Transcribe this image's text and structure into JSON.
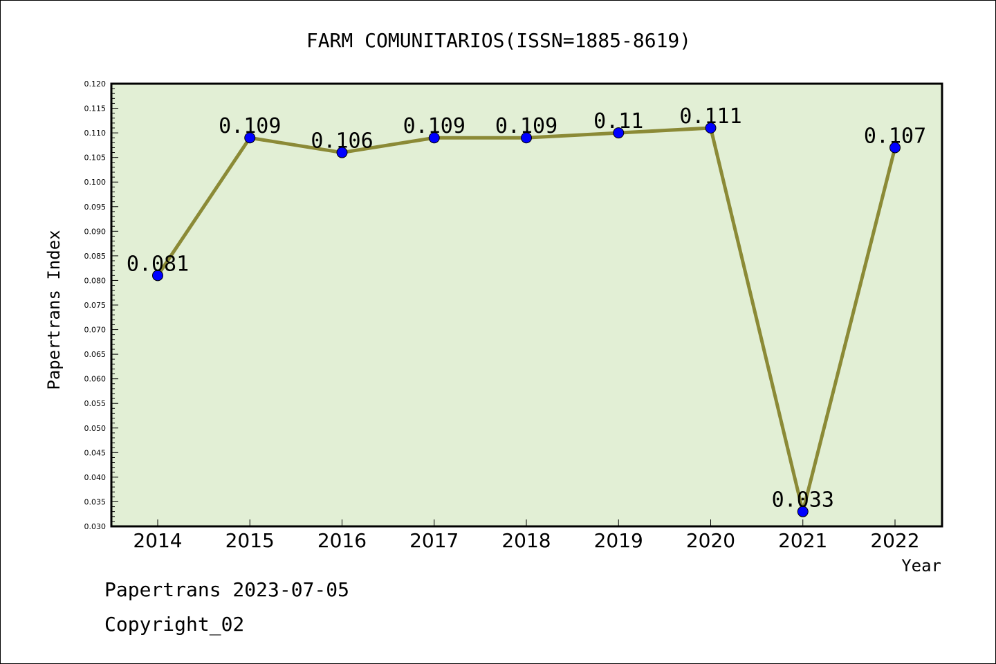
{
  "chart_data": {
    "type": "line",
    "title": "FARM COMUNITARIOS(ISSN=1885-8619)",
    "xlabel": "Year",
    "ylabel": "Papertrans Index",
    "categories": [
      "2014",
      "2015",
      "2016",
      "2017",
      "2018",
      "2019",
      "2020",
      "2021",
      "2022"
    ],
    "values": [
      0.081,
      0.109,
      0.106,
      0.109,
      0.109,
      0.11,
      0.111,
      0.033,
      0.107
    ],
    "data_labels": [
      "0.081",
      "0.109",
      "0.106",
      "0.109",
      "0.109",
      "0.11",
      "0.111",
      "0.033",
      "0.107"
    ],
    "ylim": [
      0.03,
      0.12
    ],
    "ytick_step": 0.005,
    "grid": false,
    "colors": {
      "plot_background": "#e2efd5",
      "line": "#8b8a36",
      "marker": "#0000ff"
    }
  },
  "footer": {
    "line1": "Papertrans 2023-07-05",
    "line2": "Copyright_02"
  }
}
